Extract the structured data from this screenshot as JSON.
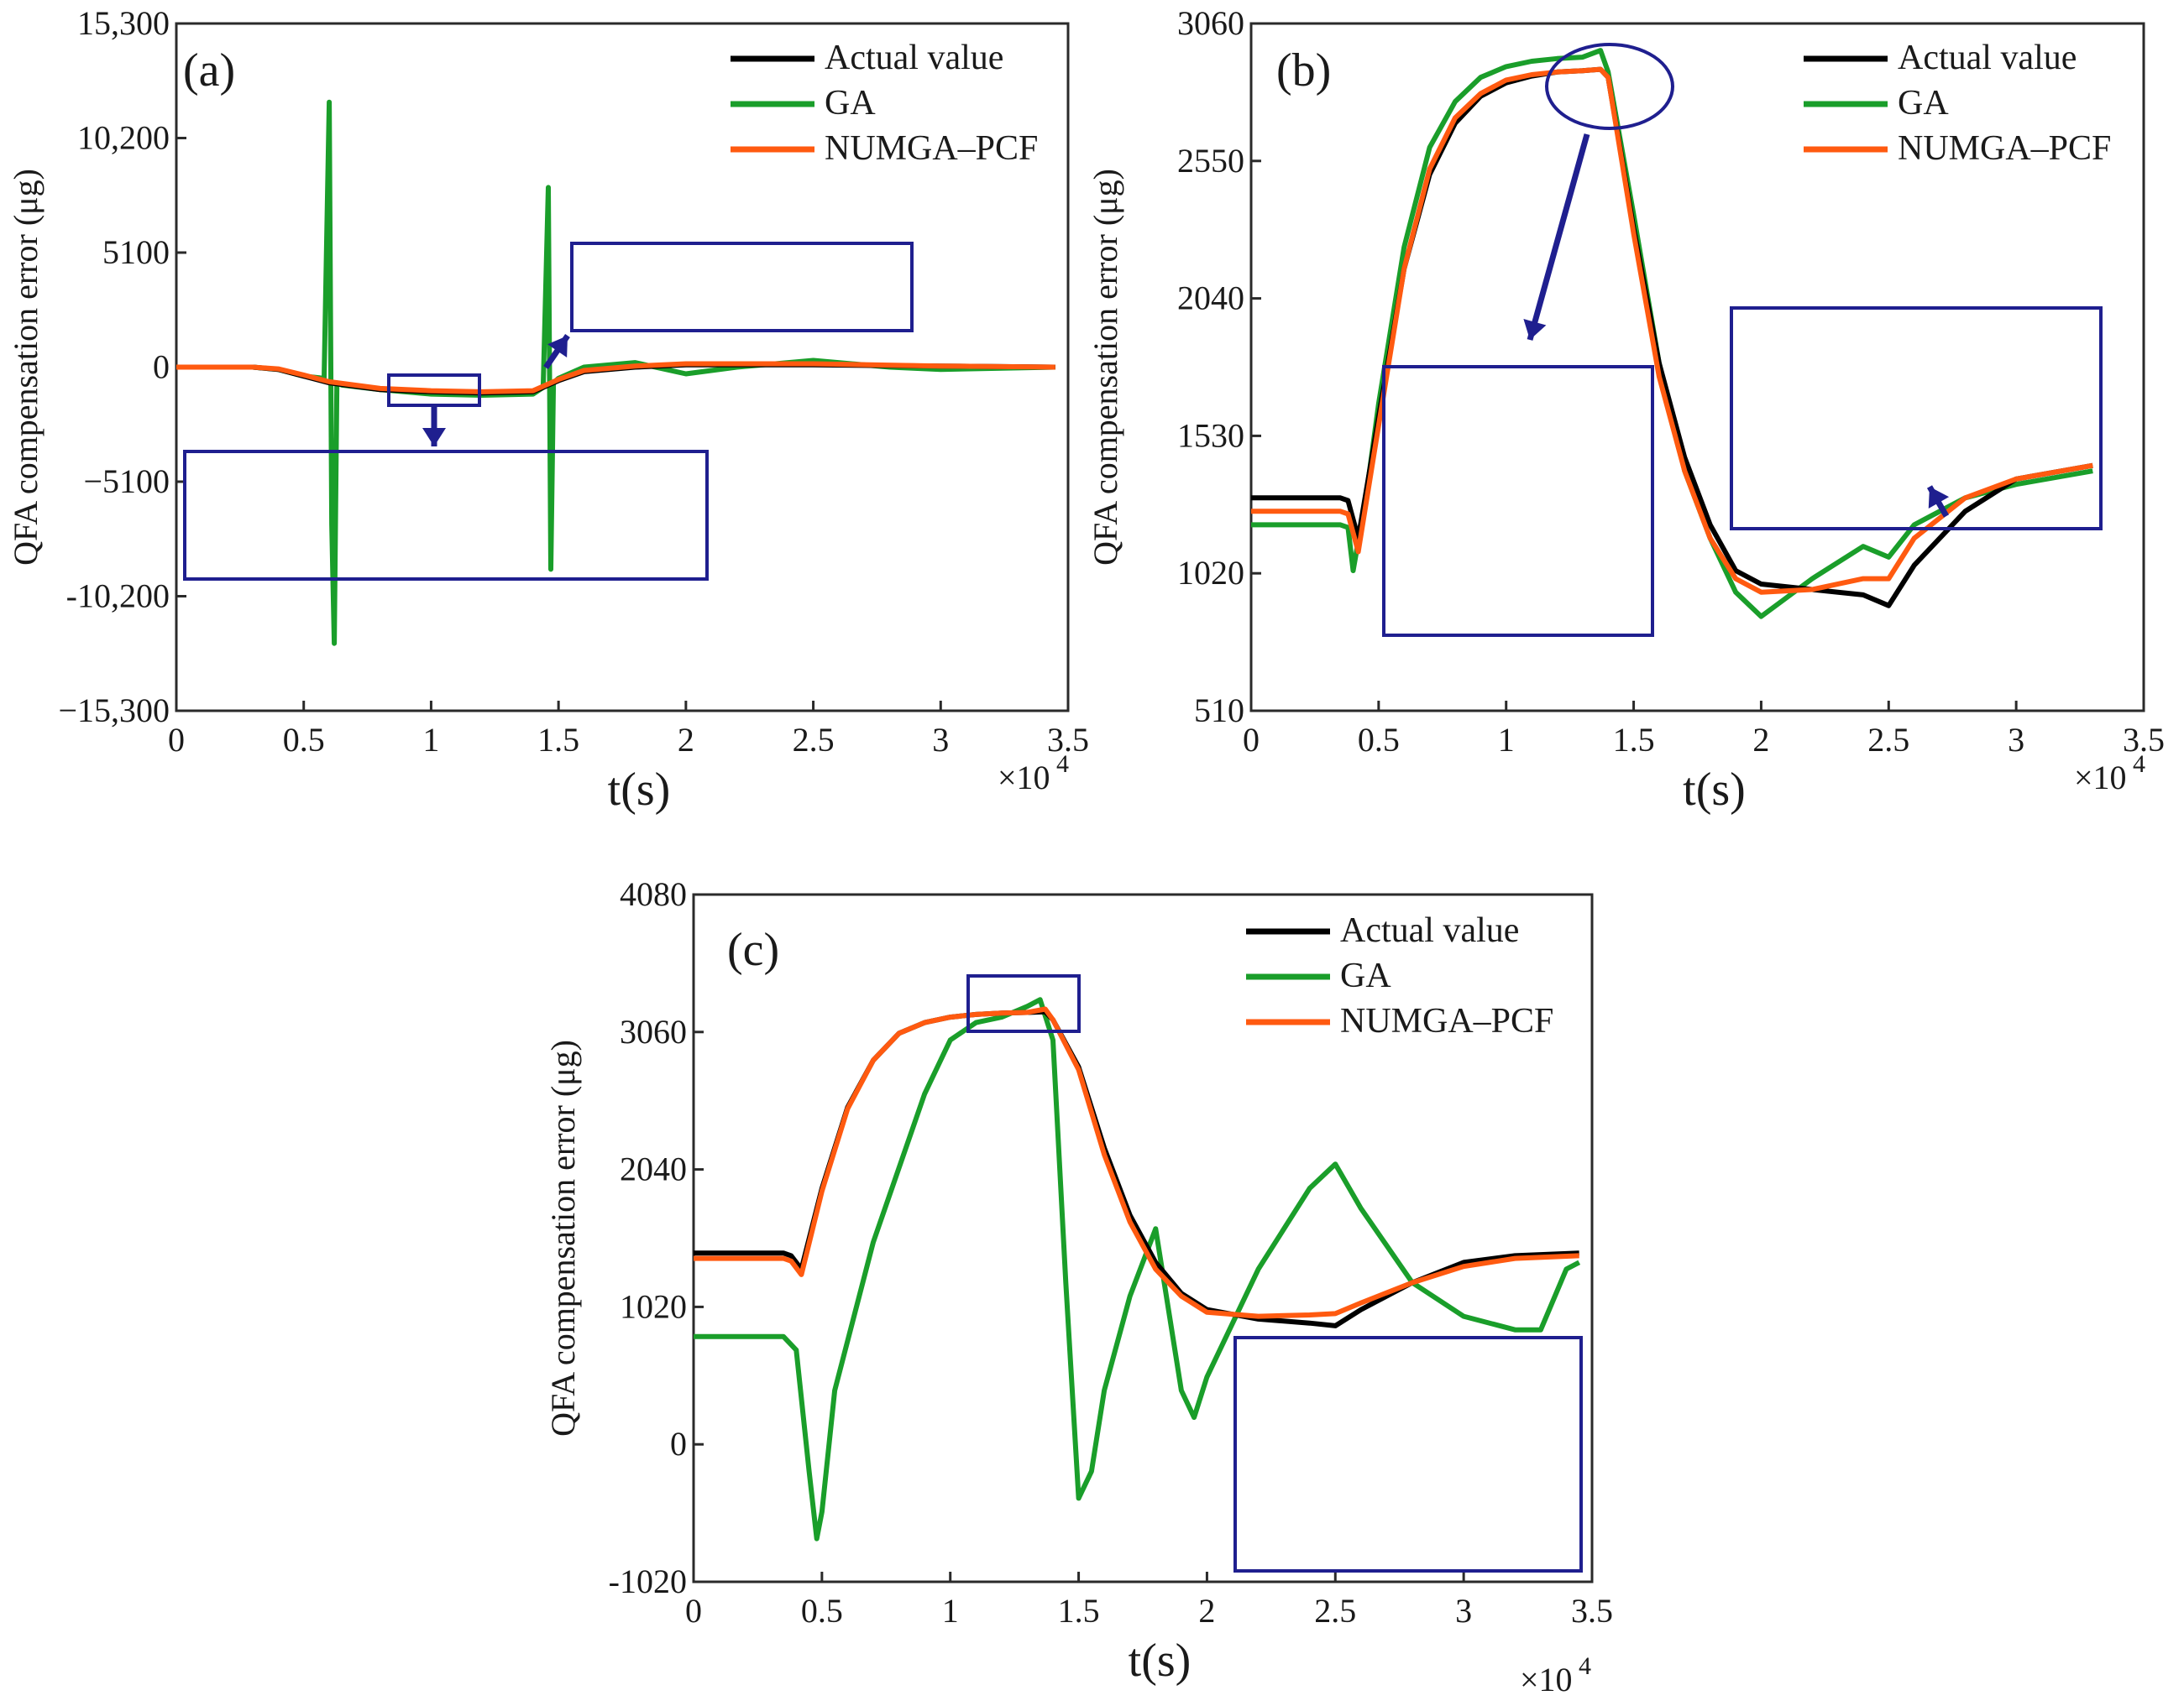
{
  "colors": {
    "actual": "#000000",
    "ga": "#1a9e2a",
    "numga": "#ff5a10",
    "inset_box": "#1f1f8f",
    "axes": "#2a2a2a"
  },
  "chart_data": [
    {
      "type": "line",
      "panel_label": "(a)",
      "title": "",
      "xlabel": "t(s)",
      "ylabel": "QFA compensation error (μg)",
      "x_multiplier_label": "×10",
      "x_multiplier_exp": "4",
      "xlim": [
        0,
        3.5
      ],
      "ylim": [
        -15300,
        15300
      ],
      "xticks": [
        0,
        0.5,
        1,
        1.5,
        2,
        2.5,
        3,
        3.5
      ],
      "xtick_labels": [
        "0",
        "0.5",
        "1",
        "1.5",
        "2",
        "2.5",
        "3",
        "3.5"
      ],
      "yticks": [
        -15300,
        -10200,
        -5100,
        0,
        5100,
        10200,
        15300
      ],
      "ytick_labels": [
        "−15,300",
        "-10,200",
        "−5100",
        "0",
        "5100",
        "10,200",
        "15,300"
      ],
      "legend": [
        "Actual value",
        "GA",
        "NUMGA–PCF"
      ],
      "legend_position": "top-right",
      "series": [
        {
          "name": "Actual value",
          "x": [
            0,
            0.3,
            0.4,
            0.5,
            0.6,
            0.8,
            1.0,
            1.2,
            1.4,
            1.5,
            1.6,
            1.8,
            2.0,
            2.5,
            3.0,
            3.45
          ],
          "y": [
            0,
            0,
            -100,
            -400,
            -700,
            -1000,
            -1100,
            -1150,
            -1100,
            -600,
            -200,
            0,
            100,
            100,
            50,
            0
          ]
        },
        {
          "name": "GA",
          "x": [
            0,
            0.3,
            0.4,
            0.5,
            0.58,
            0.6,
            0.61,
            0.62,
            0.63,
            0.65,
            0.8,
            1.0,
            1.2,
            1.4,
            1.44,
            1.46,
            1.47,
            1.48,
            1.5,
            1.6,
            1.8,
            2.0,
            2.2,
            2.5,
            2.8,
            3.0,
            3.45
          ],
          "y": [
            0,
            0,
            -100,
            -400,
            -500,
            11800,
            -7000,
            -12300,
            -700,
            -800,
            -1000,
            -1200,
            -1250,
            -1200,
            -900,
            8000,
            -9000,
            -700,
            -500,
            0,
            200,
            -300,
            0,
            300,
            0,
            -100,
            0
          ]
        },
        {
          "name": "NUMGA–PCF",
          "x": [
            0,
            0.3,
            0.4,
            0.5,
            0.6,
            0.8,
            1.0,
            1.2,
            1.4,
            1.5,
            1.6,
            1.8,
            2.0,
            2.5,
            3.0,
            3.45
          ],
          "y": [
            0,
            0,
            -80,
            -350,
            -650,
            -950,
            -1050,
            -1100,
            -1050,
            -550,
            -150,
            50,
            150,
            150,
            50,
            0
          ]
        }
      ]
    },
    {
      "type": "line",
      "panel_label": "(b)",
      "title": "",
      "xlabel": "t(s)",
      "ylabel": "QFA compensation error (μg)",
      "x_multiplier_label": "×10",
      "x_multiplier_exp": "4",
      "xlim": [
        0,
        3.5
      ],
      "ylim": [
        510,
        3060
      ],
      "xticks": [
        0,
        0.5,
        1,
        1.5,
        2,
        2.5,
        3,
        3.5
      ],
      "xtick_labels": [
        "0",
        "0.5",
        "1",
        "1.5",
        "2",
        "2.5",
        "3",
        "3.5"
      ],
      "yticks": [
        510,
        1020,
        1530,
        2040,
        2550,
        3060
      ],
      "ytick_labels": [
        "510",
        "1020",
        "1530",
        "2040",
        "2550",
        "3060"
      ],
      "legend": [
        "Actual value",
        "GA",
        "NUMGA–PCF"
      ],
      "legend_position": "top-right",
      "series": [
        {
          "name": "Actual value",
          "x": [
            0,
            0.35,
            0.38,
            0.42,
            0.5,
            0.6,
            0.7,
            0.8,
            0.9,
            1.0,
            1.1,
            1.2,
            1.3,
            1.37,
            1.4,
            1.5,
            1.6,
            1.7,
            1.8,
            1.9,
            2.0,
            2.2,
            2.4,
            2.5,
            2.6,
            2.8,
            3.0,
            3.3
          ],
          "y": [
            1300,
            1300,
            1290,
            1150,
            1600,
            2150,
            2500,
            2690,
            2790,
            2840,
            2865,
            2880,
            2885,
            2890,
            2860,
            2300,
            1800,
            1450,
            1200,
            1030,
            980,
            960,
            940,
            900,
            1050,
            1250,
            1370,
            1420
          ]
        },
        {
          "name": "GA",
          "x": [
            0,
            0.35,
            0.38,
            0.4,
            0.45,
            0.5,
            0.6,
            0.7,
            0.8,
            0.9,
            1.0,
            1.1,
            1.2,
            1.3,
            1.37,
            1.4,
            1.5,
            1.6,
            1.7,
            1.8,
            1.9,
            2.0,
            2.2,
            2.4,
            2.5,
            2.6,
            2.8,
            3.0,
            3.3
          ],
          "y": [
            1200,
            1200,
            1190,
            1030,
            1300,
            1650,
            2230,
            2600,
            2770,
            2860,
            2900,
            2920,
            2930,
            2935,
            2960,
            2880,
            2350,
            1800,
            1400,
            1150,
            950,
            860,
            1000,
            1120,
            1080,
            1200,
            1300,
            1350,
            1400
          ]
        },
        {
          "name": "NUMGA–PCF",
          "x": [
            0,
            0.35,
            0.38,
            0.42,
            0.5,
            0.6,
            0.7,
            0.8,
            0.9,
            1.0,
            1.1,
            1.2,
            1.3,
            1.37,
            1.4,
            1.5,
            1.6,
            1.7,
            1.8,
            1.9,
            2.0,
            2.2,
            2.4,
            2.5,
            2.6,
            2.8,
            3.0,
            3.3
          ],
          "y": [
            1250,
            1250,
            1240,
            1100,
            1570,
            2150,
            2520,
            2710,
            2800,
            2850,
            2870,
            2880,
            2885,
            2890,
            2860,
            2280,
            1750,
            1400,
            1150,
            1000,
            950,
            960,
            1000,
            1000,
            1150,
            1300,
            1370,
            1420
          ]
        }
      ]
    },
    {
      "type": "line",
      "panel_label": "(c)",
      "title": "",
      "xlabel": "t(s)",
      "ylabel": "QFA compensation error (μg)",
      "x_multiplier_label": "×10",
      "x_multiplier_exp": "4",
      "xlim": [
        0,
        3.5
      ],
      "ylim": [
        -1020,
        4080
      ],
      "xticks": [
        0,
        0.5,
        1,
        1.5,
        2,
        2.5,
        3,
        3.5
      ],
      "xtick_labels": [
        "0",
        "0.5",
        "1",
        "1.5",
        "2",
        "2.5",
        "3",
        "3.5"
      ],
      "yticks": [
        -1020,
        0,
        1020,
        2040,
        3060,
        4080
      ],
      "ytick_labels": [
        "-1020",
        "0",
        "1020",
        "2040",
        "3060",
        "4080"
      ],
      "legend": [
        "Actual value",
        "GA",
        "NUMGA–PCF"
      ],
      "legend_position": "top-right",
      "series": [
        {
          "name": "Actual value",
          "x": [
            0,
            0.35,
            0.38,
            0.42,
            0.5,
            0.6,
            0.7,
            0.8,
            0.9,
            1.0,
            1.1,
            1.2,
            1.3,
            1.37,
            1.4,
            1.5,
            1.6,
            1.7,
            1.8,
            1.9,
            2.0,
            2.2,
            2.4,
            2.5,
            2.6,
            2.8,
            3.0,
            3.2,
            3.45
          ],
          "y": [
            1420,
            1420,
            1400,
            1300,
            1900,
            2500,
            2850,
            3050,
            3130,
            3170,
            3190,
            3200,
            3205,
            3210,
            3150,
            2800,
            2200,
            1700,
            1350,
            1120,
            1000,
            930,
            900,
            880,
            1000,
            1200,
            1350,
            1400,
            1420
          ]
        },
        {
          "name": "GA",
          "x": [
            0,
            0.35,
            0.4,
            0.45,
            0.48,
            0.5,
            0.55,
            0.7,
            0.9,
            1.0,
            1.1,
            1.2,
            1.3,
            1.35,
            1.4,
            1.45,
            1.5,
            1.55,
            1.6,
            1.7,
            1.8,
            1.85,
            1.9,
            1.95,
            2.0,
            2.2,
            2.4,
            2.5,
            2.6,
            2.8,
            3.0,
            3.2,
            3.3,
            3.4,
            3.45
          ],
          "y": [
            800,
            800,
            700,
            -200,
            -700,
            -500,
            400,
            1500,
            2600,
            3000,
            3130,
            3170,
            3250,
            3300,
            3000,
            1200,
            -400,
            -200,
            400,
            1100,
            1600,
            1000,
            400,
            200,
            500,
            1300,
            1900,
            2080,
            1750,
            1200,
            950,
            850,
            850,
            1300,
            1350
          ]
        },
        {
          "name": "NUMGA–PCF",
          "x": [
            0,
            0.35,
            0.38,
            0.42,
            0.5,
            0.6,
            0.7,
            0.8,
            0.9,
            1.0,
            1.1,
            1.2,
            1.3,
            1.37,
            1.4,
            1.5,
            1.6,
            1.7,
            1.8,
            1.9,
            2.0,
            2.2,
            2.4,
            2.5,
            2.6,
            2.8,
            3.0,
            3.2,
            3.45
          ],
          "y": [
            1380,
            1380,
            1360,
            1260,
            1880,
            2490,
            2850,
            3050,
            3130,
            3170,
            3190,
            3200,
            3205,
            3230,
            3150,
            2780,
            2150,
            1650,
            1300,
            1100,
            980,
            950,
            960,
            970,
            1050,
            1200,
            1320,
            1380,
            1400
          ]
        }
      ]
    }
  ]
}
